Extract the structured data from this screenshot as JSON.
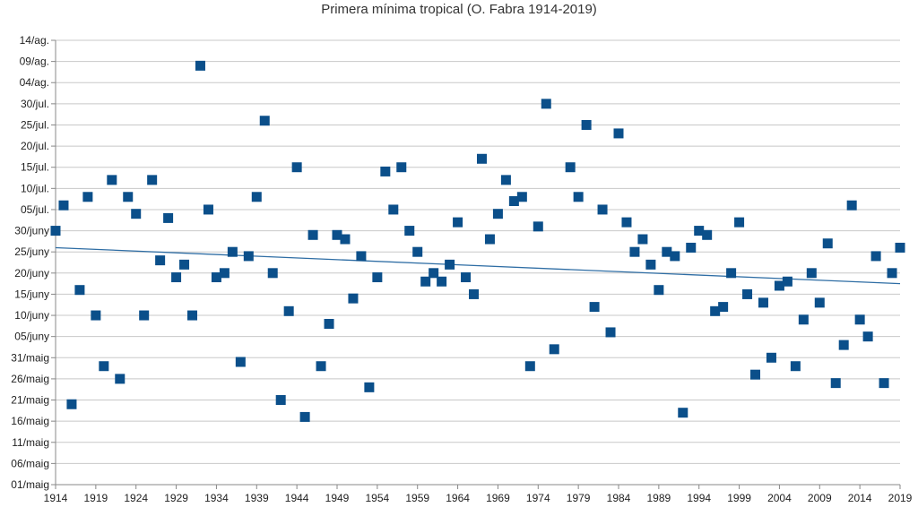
{
  "chart_data": {
    "type": "scatter",
    "title": "Primera mínima tropical (O. Fabra 1914-2019)",
    "xlabel": "",
    "ylabel": "",
    "xlim": [
      1914,
      2019
    ],
    "x_ticks": [
      1914,
      1919,
      1924,
      1929,
      1934,
      1939,
      1944,
      1949,
      1954,
      1959,
      1964,
      1969,
      1974,
      1979,
      1984,
      1989,
      1994,
      1999,
      2004,
      2009,
      2014,
      2019
    ],
    "y_ticks": [
      "01/maig",
      "06/maig",
      "11/maig",
      "16/maig",
      "21/maig",
      "26/maig",
      "31/maig",
      "05/juny",
      "10/juny",
      "15/juny",
      "20/juny",
      "25/juny",
      "30/juny",
      "05/jul.",
      "10/jul.",
      "15/jul.",
      "20/jul.",
      "25/jul.",
      "30/jul.",
      "04/ag.",
      "09/ag.",
      "14/ag."
    ],
    "y_tick_day_offsets": [
      0,
      5,
      10,
      15,
      20,
      25,
      30,
      35,
      40,
      45,
      50,
      55,
      60,
      65,
      70,
      75,
      80,
      85,
      90,
      95,
      100,
      105
    ],
    "y_unit": "days after 01/maig",
    "grid": true,
    "legend": "none",
    "series": [
      {
        "color": "#0b4f8a",
        "marker": "square",
        "x": [
          1914,
          1915,
          1916,
          1917,
          1918,
          1919,
          1920,
          1921,
          1922,
          1923,
          1924,
          1925,
          1926,
          1927,
          1928,
          1929,
          1930,
          1931,
          1932,
          1933,
          1934,
          1935,
          1936,
          1937,
          1938,
          1939,
          1940,
          1941,
          1942,
          1943,
          1944,
          1945,
          1946,
          1947,
          1948,
          1949,
          1950,
          1951,
          1952,
          1953,
          1954,
          1955,
          1956,
          1957,
          1958,
          1959,
          1960,
          1961,
          1962,
          1963,
          1964,
          1965,
          1966,
          1967,
          1968,
          1969,
          1970,
          1971,
          1972,
          1973,
          1974,
          1975,
          1976,
          1978,
          1979,
          1980,
          1981,
          1982,
          1983,
          1984,
          1985,
          1986,
          1987,
          1988,
          1989,
          1990,
          1991,
          1992,
          1993,
          1994,
          1995,
          1996,
          1997,
          1998,
          1999,
          2000,
          2001,
          2002,
          2003,
          2004,
          2005,
          2006,
          2007,
          2008,
          2009,
          2010,
          2011,
          2012,
          2013,
          2014,
          2015,
          2016,
          2017,
          2018,
          2019
        ],
        "y": [
          60,
          66,
          19,
          46,
          68,
          40,
          28,
          72,
          25,
          68,
          64,
          40,
          72,
          53,
          63,
          49,
          52,
          40,
          99,
          65,
          49,
          50,
          55,
          29,
          54,
          68,
          86,
          50,
          20,
          41,
          75,
          16,
          59,
          28,
          38,
          59,
          58,
          44,
          54,
          23,
          49,
          74,
          65,
          75,
          60,
          55,
          48,
          50,
          48,
          52,
          62,
          49,
          45,
          77,
          58,
          64,
          72,
          67,
          68,
          28,
          61,
          90,
          32,
          75,
          68,
          85,
          42,
          65,
          36,
          83,
          62,
          55,
          58,
          52,
          46,
          55,
          54,
          17,
          56,
          60,
          59,
          41,
          42,
          50,
          62,
          45,
          26,
          43,
          30,
          47,
          48,
          28,
          39,
          50,
          43,
          57,
          24,
          33,
          66,
          39,
          35,
          54,
          24,
          50,
          56
        ]
      },
      {
        "type": "line",
        "role": "trendline",
        "color": "#2e6da4",
        "x": [
          1914,
          2019
        ],
        "y": [
          56,
          47.5
        ]
      }
    ]
  }
}
